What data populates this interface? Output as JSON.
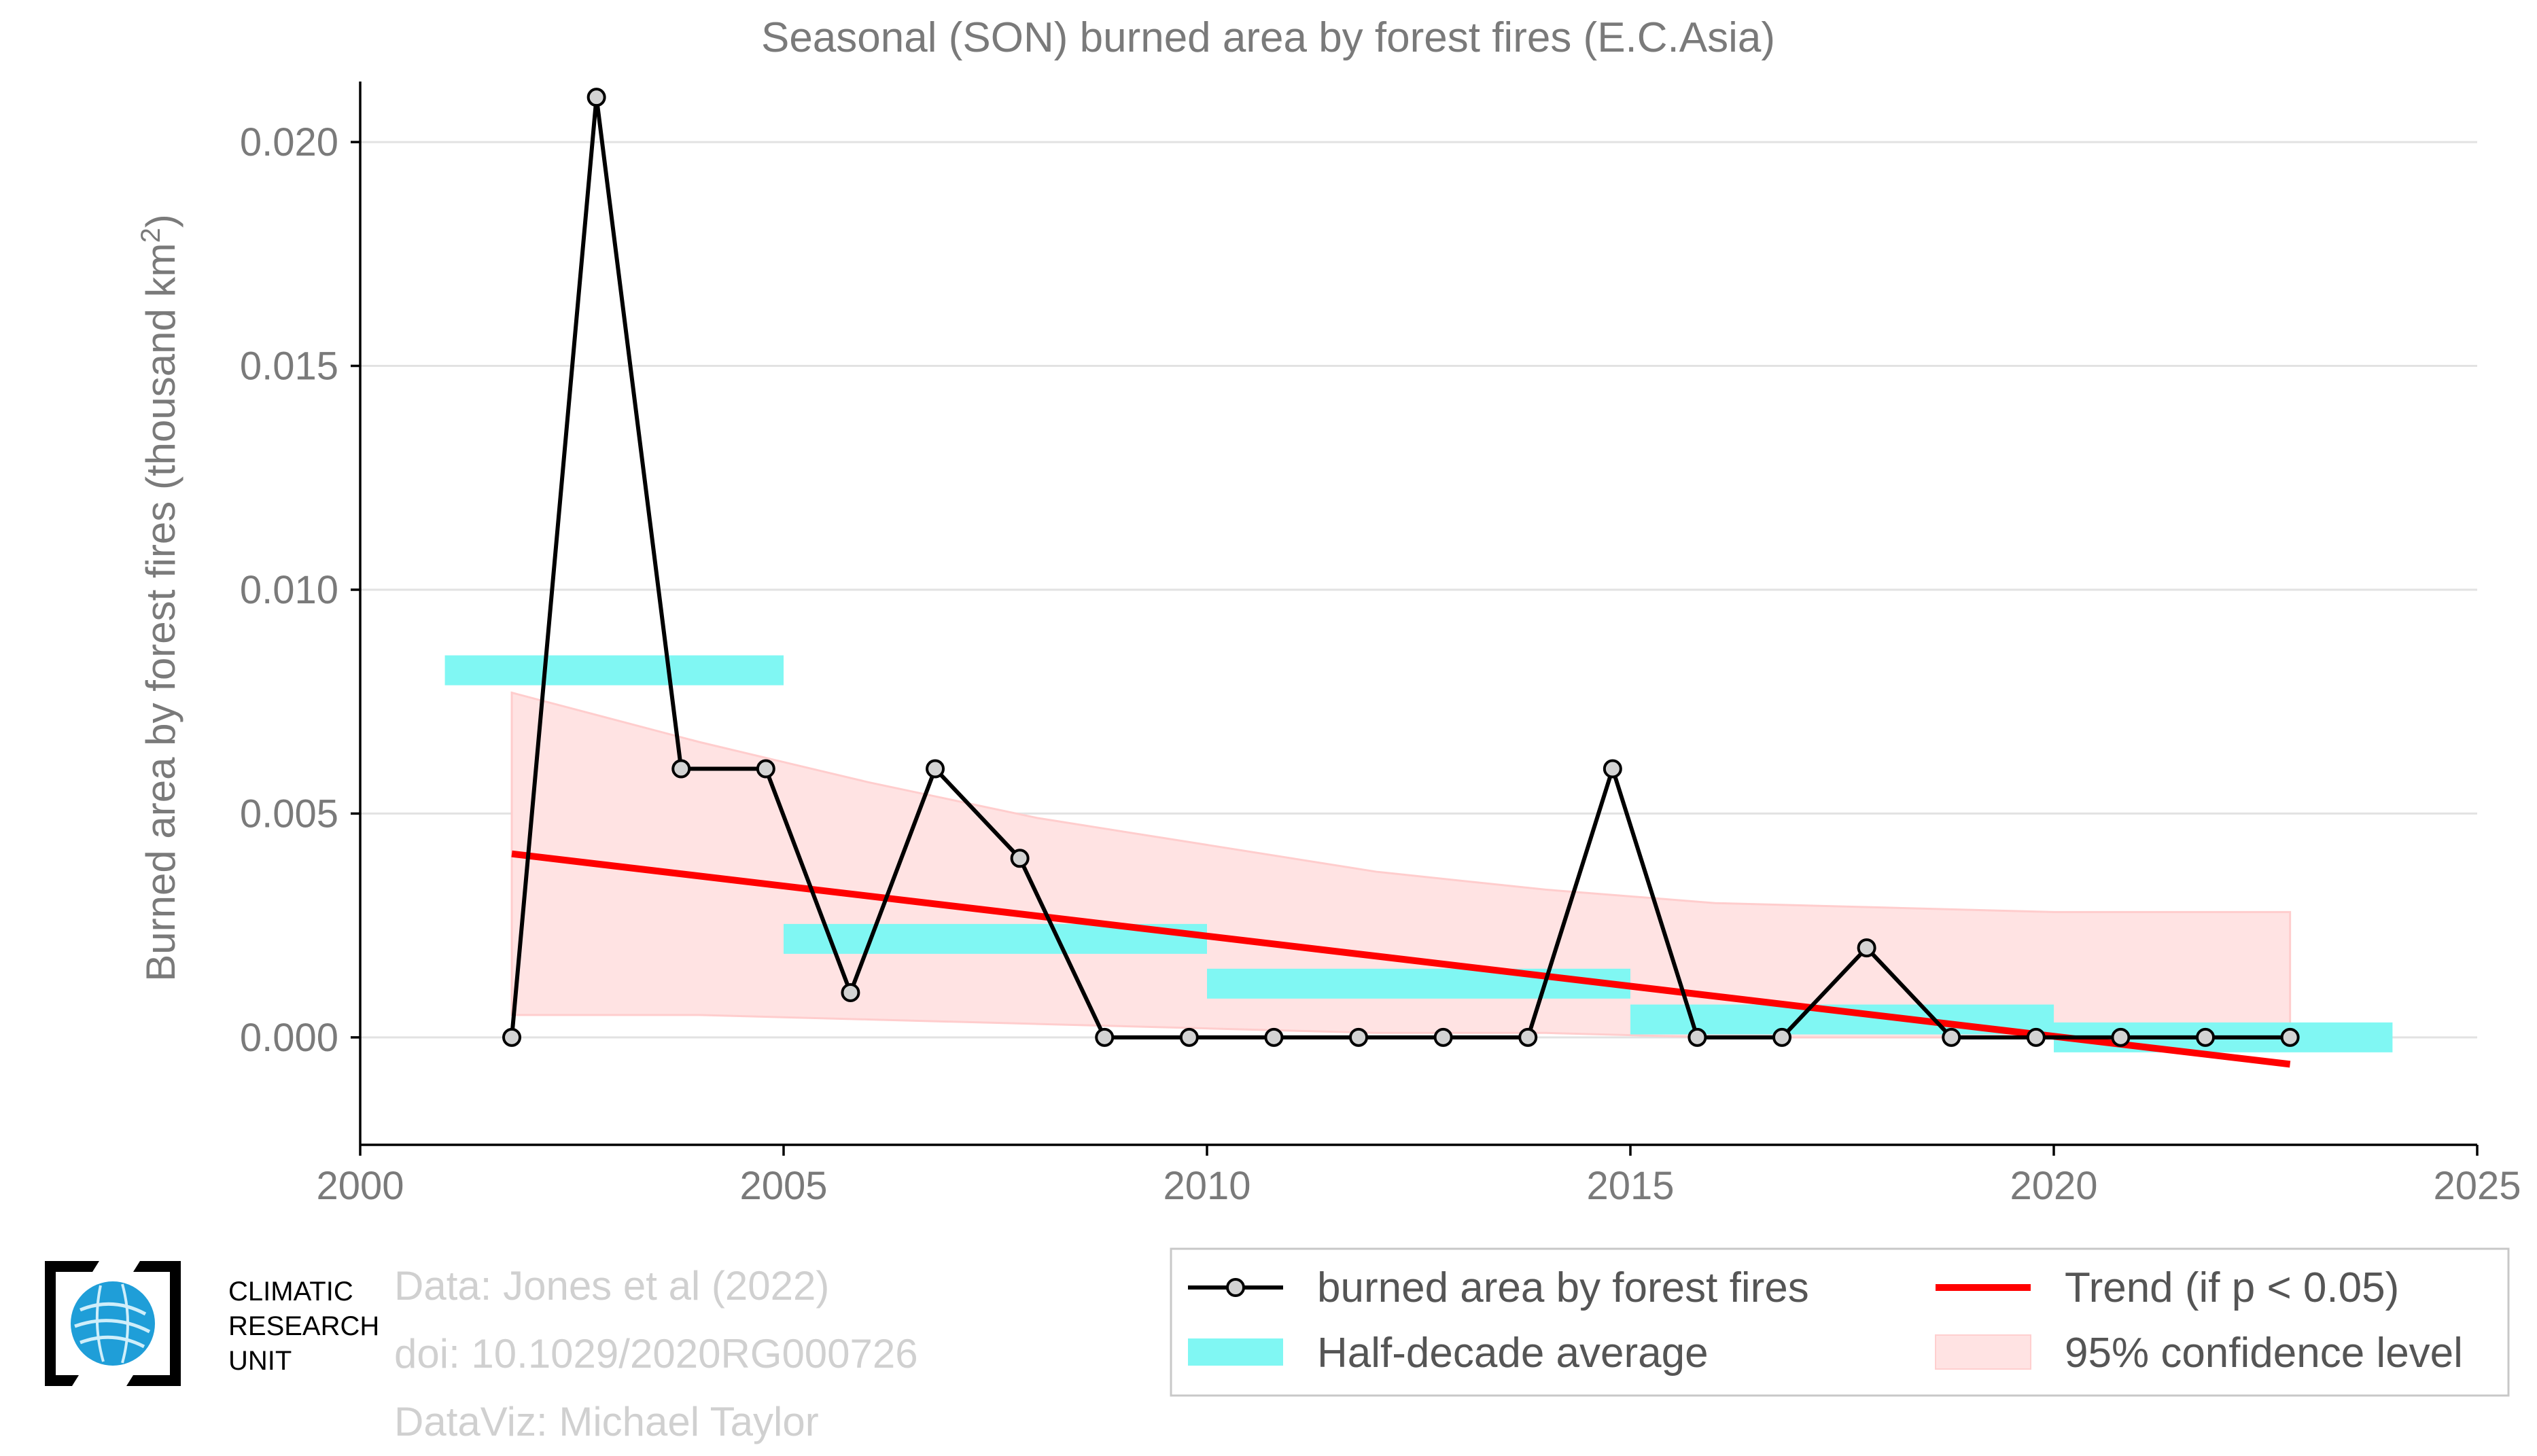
{
  "chart_data": {
    "type": "line",
    "title": "Seasonal (SON) burned area by forest fires (E.C.Asia)",
    "ylabel_main": "Burned area by forest fires (thousand km",
    "ylabel_sup": "2",
    "ylabel_end": ")",
    "xlim": [
      2000,
      2025
    ],
    "ylim": [
      -0.0024,
      0.0212
    ],
    "x_ticks": [
      2000,
      2005,
      2010,
      2015,
      2020,
      2025
    ],
    "y_ticks": [
      0.0,
      0.005,
      0.01,
      0.015,
      0.02
    ],
    "y_tick_labels": [
      "0.000",
      "0.005",
      "0.010",
      "0.015",
      "0.020"
    ],
    "grid": "horizontal",
    "series": [
      {
        "name": "burned area by forest fires",
        "color": "#000000",
        "x": [
          2001.79,
          2002.79,
          2003.79,
          2004.79,
          2005.79,
          2006.79,
          2007.79,
          2008.79,
          2009.79,
          2010.79,
          2011.79,
          2012.79,
          2013.79,
          2014.79,
          2015.79,
          2016.79,
          2017.79,
          2018.79,
          2019.79,
          2020.79,
          2021.79,
          2022.79
        ],
        "y": [
          0.0,
          0.021,
          0.006,
          0.006,
          0.001,
          0.006,
          0.004,
          0.0,
          0.0,
          0.0,
          0.0,
          0.0,
          0.0,
          0.006,
          0.0,
          0.0,
          0.002,
          0.0,
          0.0,
          0.0,
          0.0,
          0.0
        ]
      }
    ],
    "half_decade_average": {
      "name": "Half-decade average",
      "color": "#80f7f3",
      "segments": [
        {
          "x0": 2001,
          "x1": 2005,
          "y": 0.0082
        },
        {
          "x0": 2005,
          "x1": 2010,
          "y": 0.0022
        },
        {
          "x0": 2010,
          "x1": 2015,
          "y": 0.0012
        },
        {
          "x0": 2015,
          "x1": 2020,
          "y": 0.0004
        },
        {
          "x0": 2020,
          "x1": 2024,
          "y": 0.0
        }
      ]
    },
    "trend": {
      "name": "Trend (if p < 0.05)",
      "color": "#ff0000",
      "x0": 2001.79,
      "y0": 0.0041,
      "x1": 2022.79,
      "y1": -0.0006
    },
    "confidence": {
      "name": "95% confidence level",
      "color": "#ffe3e3",
      "x": [
        2001.79,
        2004,
        2006,
        2008,
        2010,
        2012,
        2014,
        2016,
        2018,
        2020,
        2022.79
      ],
      "upper": [
        0.0077,
        0.0066,
        0.0057,
        0.0049,
        0.0043,
        0.0037,
        0.0033,
        0.003,
        0.0029,
        0.0028,
        0.0028
      ],
      "lower": [
        0.0005,
        0.0005,
        0.0004,
        0.0003,
        0.0002,
        0.0001,
        0.0001,
        0.0,
        0.0,
        0.0,
        0.0001
      ]
    },
    "legend_placement": "bottom-right"
  },
  "credits": {
    "line1": "Data: Jones et al (2022)",
    "line2": "doi: 10.1029/2020RG000726",
    "line3": "DataViz: Michael Taylor"
  },
  "logo": {
    "line1": "CLIMATIC",
    "line2": "RESEARCH",
    "line3": "UNIT",
    "icon": "globe-icon"
  }
}
